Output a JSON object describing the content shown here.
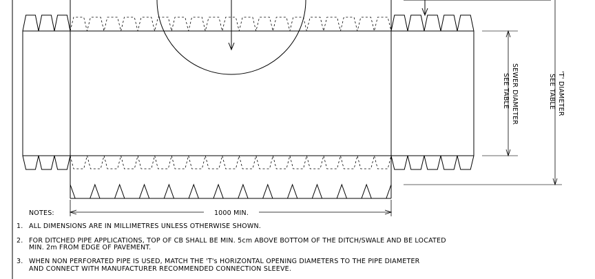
{
  "notes": {
    "heading": "NOTES:",
    "items": [
      {
        "number": "1.",
        "lines": [
          "ALL DIMENSIONS ARE IN MILLIMETRES UNLESS OTHERWISE SHOWN."
        ]
      },
      {
        "number": "2.",
        "lines": [
          "FOR DITCHED PIPE APPLICATIONS, TOP OF CB SHALL BE MIN. 5cm  ABOVE BOTTOM OF THE DITCH/SWALE AND BE LOCATED",
          "MIN. 2m  FROM EDGE OF PAVEMENT."
        ]
      },
      {
        "number": "3.",
        "lines": [
          "WHEN NON PERFORATED PIPE IS USED, MATCH THE 'T's HORIZONTAL OPENING DIAMETERS TO THE PIPE DIAMETER",
          "AND CONNECT WITH MANUFACTURER RECOMMENDED CONNECTION SLEEVE."
        ]
      }
    ]
  },
  "dimensions": {
    "length": "1000 MIN.",
    "sewer_diameter": [
      "SEWER DIAMETER",
      "SEE TABLE"
    ],
    "t_diameter": [
      "'T' DIAMETER",
      "SEE TABLE"
    ]
  }
}
